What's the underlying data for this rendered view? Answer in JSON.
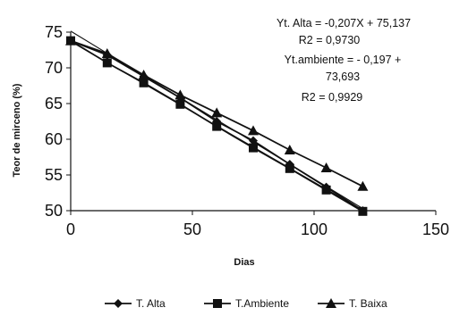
{
  "chart_data": {
    "type": "line",
    "title": "",
    "xlabel": "Dias",
    "ylabel": "Teor de mirceno (%)",
    "xlim": [
      0,
      150
    ],
    "ylim": [
      50,
      75
    ],
    "xticks": [
      0,
      50,
      100,
      150
    ],
    "yticks": [
      50,
      55,
      60,
      65,
      70,
      75
    ],
    "grid": false,
    "legend_position": "bottom",
    "x": [
      0,
      15,
      30,
      45,
      60,
      75,
      90,
      105,
      120
    ],
    "series": [
      {
        "name": "T. Alta",
        "marker": "diamond",
        "values": [
          73.8,
          71.8,
          68.8,
          65.8,
          62.5,
          59.8,
          56.5,
          53.3,
          50.0
        ],
        "fit": [
          75.137,
          -0.207
        ]
      },
      {
        "name": "T.Ambiente",
        "marker": "square",
        "values": [
          73.8,
          70.7,
          67.9,
          64.9,
          61.8,
          58.8,
          55.9,
          52.9,
          49.9
        ],
        "fit": [
          73.693,
          -0.197
        ]
      },
      {
        "name": "T. Baixa",
        "marker": "triangle",
        "values": [
          73.8,
          72.0,
          69.0,
          66.2,
          63.7,
          61.2,
          58.5,
          56.0,
          53.4
        ]
      }
    ],
    "annotations": [
      "Yt. Alta = -0,207X + 75,137",
      "R2 = 0,9730",
      "Yt.ambiente = - 0,197 +",
      "73,693",
      "R2 = 0,9929"
    ]
  }
}
